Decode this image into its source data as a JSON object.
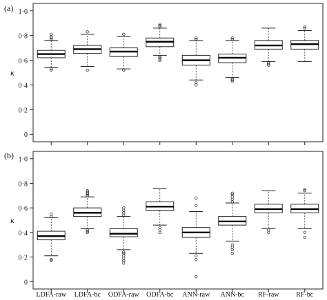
{
  "chart_data": [
    {
      "type": "box",
      "panel_label": "(a)",
      "ylabel": "κ",
      "ylim": [
        0,
        1.0
      ],
      "yticks": [
        "0",
        "0·2",
        "0·4",
        "0·6",
        "0·8",
        "1·0"
      ],
      "categories": [
        "LDFA-raw",
        "LDFA-bc",
        "QDFA-raw",
        "QDFA-bc",
        "ANN-raw",
        "ANN-bc",
        "RF-raw",
        "RF-bc"
      ],
      "show_xticklabels": false,
      "boxes": [
        {
          "q1": 0.62,
          "median": 0.65,
          "q3": 0.68,
          "whisker_low": 0.54,
          "whisker_high": 0.76,
          "outliers": [
            0.52,
            0.53,
            0.77,
            0.78,
            0.79,
            0.81
          ]
        },
        {
          "q1": 0.655,
          "median": 0.69,
          "q3": 0.72,
          "whisker_low": 0.55,
          "whisker_high": 0.81,
          "outliers": [
            0.52,
            0.83
          ]
        },
        {
          "q1": 0.63,
          "median": 0.67,
          "q3": 0.7,
          "whisker_low": 0.53,
          "whisker_high": 0.79,
          "outliers": [
            0.52,
            0.81
          ]
        },
        {
          "q1": 0.71,
          "median": 0.75,
          "q3": 0.78,
          "whisker_low": 0.64,
          "whisker_high": 0.86,
          "outliers": [
            0.6,
            0.61,
            0.62,
            0.63,
            0.87,
            0.88,
            0.89
          ]
        },
        {
          "q1": 0.56,
          "median": 0.6,
          "q3": 0.64,
          "whisker_low": 0.44,
          "whisker_high": 0.76,
          "outliers": [
            0.4,
            0.42,
            0.77,
            0.78
          ]
        },
        {
          "q1": 0.58,
          "median": 0.62,
          "q3": 0.65,
          "whisker_low": 0.46,
          "whisker_high": 0.76,
          "outliers": [
            0.43,
            0.44,
            0.45,
            0.77,
            0.78
          ]
        },
        {
          "q1": 0.69,
          "median": 0.72,
          "q3": 0.76,
          "whisker_low": 0.59,
          "whisker_high": 0.86,
          "outliers": [
            0.56,
            0.57,
            0.58
          ]
        },
        {
          "q1": 0.69,
          "median": 0.73,
          "q3": 0.76,
          "whisker_low": 0.59,
          "whisker_high": 0.84,
          "outliers": [
            0.86,
            0.87
          ]
        }
      ]
    },
    {
      "type": "box",
      "panel_label": "(b)",
      "ylabel": "κ",
      "ylim": [
        0,
        1.0
      ],
      "yticks": [
        "0",
        "0·2",
        "0·4",
        "0·6",
        "0·8",
        "1·0"
      ],
      "categories": [
        "LDFA-raw",
        "LDFA-bc",
        "QDFA-raw",
        "QDFA-bc",
        "ANN-raw",
        "ANN-bc",
        "RF-raw",
        "RF-bc"
      ],
      "show_xticklabels": true,
      "boxes": [
        {
          "q1": 0.34,
          "median": 0.37,
          "q3": 0.41,
          "whisker_low": 0.21,
          "whisker_high": 0.52,
          "outliers": [
            0.17,
            0.18,
            0.53,
            0.55
          ]
        },
        {
          "q1": 0.53,
          "median": 0.56,
          "q3": 0.6,
          "whisker_low": 0.43,
          "whisker_high": 0.69,
          "outliers": [
            0.4,
            0.41,
            0.42,
            0.7,
            0.71,
            0.72,
            0.73,
            0.74
          ]
        },
        {
          "q1": 0.365,
          "median": 0.39,
          "q3": 0.43,
          "whisker_low": 0.26,
          "whisker_high": 0.53,
          "outliers": [
            0.15,
            0.17,
            0.19,
            0.21,
            0.23,
            0.24,
            0.54,
            0.56,
            0.58,
            0.6
          ]
        },
        {
          "q1": 0.58,
          "median": 0.61,
          "q3": 0.65,
          "whisker_low": 0.46,
          "whisker_high": 0.76,
          "outliers": [
            0.4,
            0.42,
            0.44
          ]
        },
        {
          "q1": 0.36,
          "median": 0.4,
          "q3": 0.44,
          "whisker_low": 0.23,
          "whisker_high": 0.57,
          "outliers": [
            0.04,
            0.18,
            0.21,
            0.62,
            0.68
          ]
        },
        {
          "q1": 0.46,
          "median": 0.49,
          "q3": 0.53,
          "whisker_low": 0.33,
          "whisker_high": 0.64,
          "outliers": [
            0.23,
            0.26,
            0.28,
            0.3,
            0.65,
            0.67,
            0.69,
            0.71,
            0.72
          ]
        },
        {
          "q1": 0.56,
          "median": 0.59,
          "q3": 0.63,
          "whisker_low": 0.43,
          "whisker_high": 0.74,
          "outliers": [
            0.4,
            0.42
          ]
        },
        {
          "q1": 0.56,
          "median": 0.59,
          "q3": 0.63,
          "whisker_low": 0.43,
          "whisker_high": 0.72,
          "outliers": [
            0.36,
            0.4,
            0.74,
            0.75
          ]
        }
      ]
    }
  ]
}
